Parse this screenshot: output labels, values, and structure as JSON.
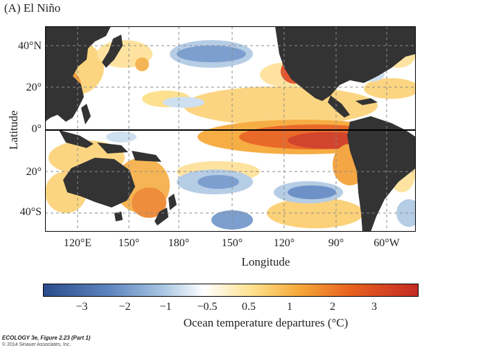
{
  "panel_label": "(A)  El Niño",
  "map": {
    "y_ticks": [
      "40°N",
      "20°",
      "0°",
      "20°",
      "40°S"
    ],
    "x_ticks": [
      "120°E",
      "150°",
      "180°",
      "150°",
      "120°",
      "90°",
      "60°W"
    ],
    "xlabel": "Longitude",
    "ylabel": "Latitude",
    "land_color": "#333333",
    "equator_line": true,
    "grid": "dashed"
  },
  "colorbar": {
    "ticks": [
      "−3",
      "−2",
      "−1",
      "−0.5",
      "0.5",
      "1",
      "2",
      "3"
    ],
    "title": "Ocean temperature departures (°C)",
    "colors": [
      "#2a4b8c",
      "#5f86bf",
      "#a8c6e3",
      "#ffffff",
      "#fde08a",
      "#f6a93a",
      "#e8611e",
      "#c42a24"
    ]
  },
  "credit": {
    "line1": "ECOLOGY 3e, Figure 2.23 (Part 1)",
    "line2": "© 2014 Sinauer Associates, Inc."
  }
}
